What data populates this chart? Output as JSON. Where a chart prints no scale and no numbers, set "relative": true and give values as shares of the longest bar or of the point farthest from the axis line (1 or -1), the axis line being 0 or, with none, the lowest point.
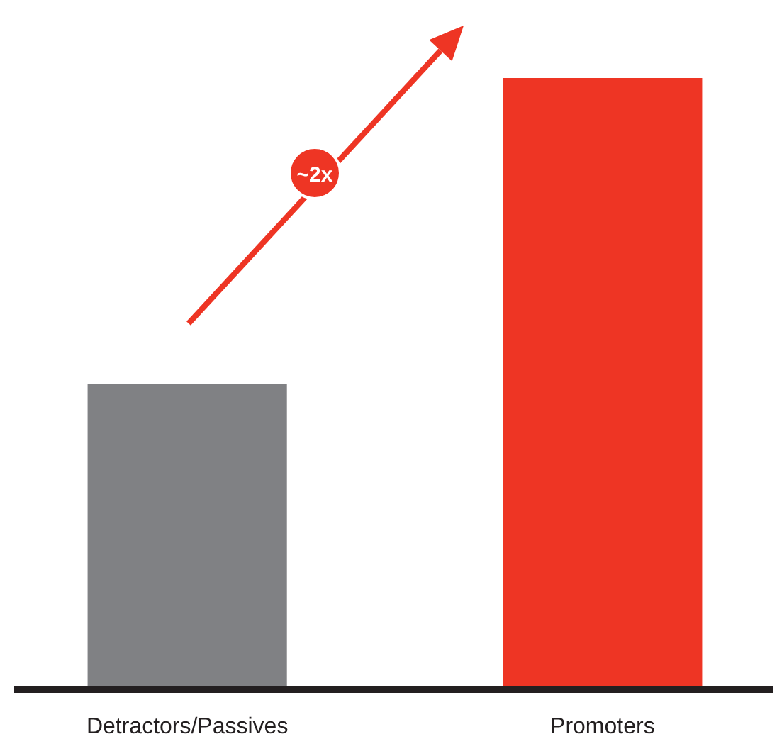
{
  "chart_data": {
    "type": "bar",
    "relative": true,
    "categories": [
      "Detractors/Passives",
      "Promoters"
    ],
    "values": [
      0.5,
      1
    ],
    "colors": [
      "#808184",
      "#ee3524"
    ],
    "annotations": [
      "~2x"
    ]
  }
}
